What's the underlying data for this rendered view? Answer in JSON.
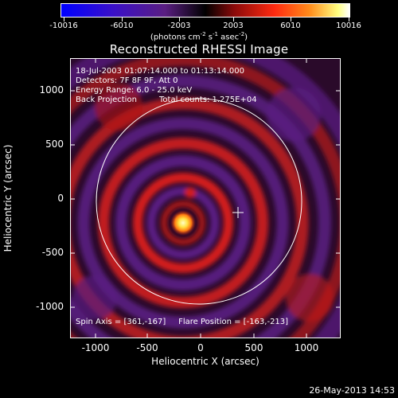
{
  "colorbar": {
    "tick_labels": [
      "-10016",
      "-6010",
      "-2003",
      "2003",
      "6010",
      "10016"
    ],
    "tick_values": [
      -10016,
      -6010,
      -2003,
      2003,
      6010,
      10016
    ],
    "range": [
      -10016,
      10016
    ],
    "units_main": "(photons cm",
    "units_sup1": "-2",
    "units_mid1": " s",
    "units_sup2": "-1",
    "units_mid2": " asec",
    "units_sup3": "-2",
    "units_end": ")"
  },
  "title": "Reconstructed RHESSI Image",
  "annotations": {
    "line1": "18-Jul-2003 01:07:14.000 to 01:13:14.000",
    "line2": "Detectors: 7F 8F 9F, Att 0",
    "line3": "Energy Range: 6.0 - 25.0 keV",
    "line4_left": "Back Projection",
    "line4_right": "Total counts: 1.275E+04",
    "bottom": "Spin Axis = [361,-167]     Flare Position = [-163,-213]"
  },
  "axes": {
    "xlabel": "Heliocentric X (arcsec)",
    "ylabel": "Heliocentric Y (arcsec)",
    "xticks": [
      "-1000",
      "-500",
      "0",
      "500",
      "1000"
    ],
    "xtick_values": [
      -1000,
      -500,
      0,
      500,
      1000
    ],
    "yticks": [
      "1000",
      "500",
      "0",
      "-500",
      "-1000"
    ],
    "ytick_values": [
      1000,
      500,
      0,
      -500,
      -1000
    ],
    "xlim": [
      -1290,
      1290
    ],
    "ylim": [
      -1290,
      1290
    ]
  },
  "image": {
    "flare_position": [
      -163,
      -213
    ],
    "spin_axis": [
      361,
      -167
    ],
    "solar_radius_arcsec": 950
  },
  "footer_date": "26-May-2013 14:53",
  "colors": {
    "ring_red": "#d21e1e",
    "ring_purple": "#5a1e82",
    "source_core": "#ffffc8"
  }
}
